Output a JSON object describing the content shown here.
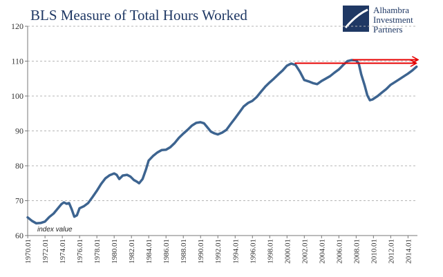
{
  "logo": {
    "lines": [
      "Alhambra",
      "Investment",
      "Partners"
    ],
    "color": "#1f3864"
  },
  "chart_data": {
    "type": "line",
    "title": "BLS Measure of Total Hours Worked",
    "annotation": "index value",
    "xlabel": "",
    "ylabel": "",
    "ylim": [
      60,
      120
    ],
    "yticks": [
      60,
      70,
      80,
      90,
      100,
      110,
      120
    ],
    "xlim": [
      1970.0,
      2015.1
    ],
    "xticks": [
      "1970.01",
      "1972.01",
      "1974.01",
      "1976.01",
      "1978.01",
      "1980.01",
      "1982.01",
      "1984.01",
      "1986.01",
      "1988.01",
      "1990.01",
      "1992.01",
      "1994.01",
      "1996.01",
      "1998.01",
      "2000.01",
      "2002.01",
      "2004.01",
      "2006.01",
      "2008.01",
      "2010.01",
      "2012.01",
      "2014.01"
    ],
    "grid": true,
    "line_color": "#3d6490",
    "reference_color": "#e60000",
    "series": [
      {
        "x": [
          1970.0,
          1970.5,
          1971.0,
          1971.5,
          1972.0,
          1972.5,
          1973.0,
          1973.5,
          1973.9,
          1974.2,
          1974.5,
          1974.8,
          1975.1,
          1975.4,
          1975.7,
          1976.0,
          1976.5,
          1977.0,
          1977.5,
          1978.0,
          1978.5,
          1979.0,
          1979.5,
          1980.0,
          1980.3,
          1980.6,
          1981.0,
          1981.5,
          1981.9,
          1982.3,
          1982.6,
          1982.9,
          1983.3,
          1983.7,
          1984.0,
          1984.5,
          1985.0,
          1985.5,
          1986.0,
          1986.5,
          1987.0,
          1987.5,
          1988.0,
          1988.5,
          1989.0,
          1989.5,
          1990.0,
          1990.4,
          1990.8,
          1991.2,
          1991.6,
          1992.0,
          1992.5,
          1993.0,
          1993.5,
          1994.0,
          1994.5,
          1995.0,
          1995.5,
          1996.0,
          1996.5,
          1997.0,
          1997.5,
          1998.0,
          1998.5,
          1999.0,
          1999.5,
          2000.0,
          2000.5,
          2001.0,
          2001.5,
          2002.0,
          2002.5,
          2003.0,
          2003.5,
          2004.0,
          2004.5,
          2005.0,
          2005.5,
          2006.0,
          2006.5,
          2007.0,
          2007.5,
          2008.0,
          2008.3,
          2008.6,
          2009.0,
          2009.3,
          2009.6,
          2009.9,
          2010.2,
          2010.5,
          2011.0,
          2011.5,
          2012.0,
          2012.5,
          2013.0,
          2013.5,
          2014.0,
          2014.5,
          2015.0
        ],
        "y": [
          65.2,
          64.2,
          63.5,
          63.6,
          64.0,
          65.3,
          66.3,
          67.8,
          69.0,
          69.5,
          69.1,
          69.3,
          67.5,
          65.4,
          65.8,
          67.8,
          68.4,
          69.3,
          71.0,
          72.8,
          74.8,
          76.4,
          77.3,
          77.8,
          77.4,
          76.2,
          77.2,
          77.4,
          76.9,
          75.9,
          75.5,
          75.0,
          76.2,
          79.0,
          81.5,
          82.8,
          83.8,
          84.5,
          84.6,
          85.3,
          86.5,
          88.0,
          89.2,
          90.3,
          91.5,
          92.3,
          92.5,
          92.2,
          91.0,
          89.8,
          89.3,
          89.0,
          89.5,
          90.3,
          92.0,
          93.6,
          95.3,
          97.0,
          98.0,
          98.6,
          99.7,
          101.2,
          102.7,
          103.9,
          105.0,
          106.2,
          107.3,
          108.7,
          109.3,
          108.9,
          107.0,
          104.6,
          104.2,
          103.7,
          103.4,
          104.3,
          105.0,
          105.7,
          106.7,
          107.6,
          108.9,
          110.0,
          110.3,
          110.2,
          109.4,
          106.2,
          103.0,
          100.2,
          98.8,
          99.0,
          99.5,
          100.0,
          101.0,
          102.0,
          103.2,
          104.0,
          104.8,
          105.6,
          106.4,
          107.3,
          108.4
        ]
      }
    ],
    "reference_arrows": [
      {
        "from_x": 2000.9,
        "to_x": 2014.9,
        "y": 109.4
      },
      {
        "from_x": 2007.6,
        "to_x": 2015.1,
        "y": 110.4
      }
    ]
  }
}
